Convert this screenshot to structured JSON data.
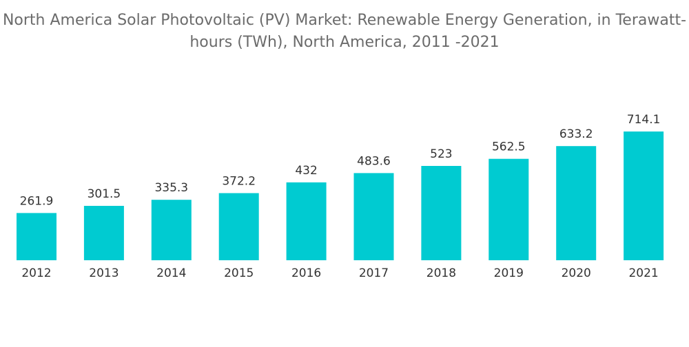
{
  "chart_data": {
    "type": "bar",
    "title": "North America Solar Photovoltaic (PV) Market: Renewable Energy Generation, in Terawatt-hours (TWh), North America, 2011 -2021",
    "xlabel": "",
    "ylabel": "",
    "categories": [
      "2012",
      "2013",
      "2014",
      "2015",
      "2016",
      "2017",
      "2018",
      "2019",
      "2020",
      "2021"
    ],
    "values": [
      261.9,
      301.5,
      335.3,
      372.2,
      432,
      483.6,
      523,
      562.5,
      633.2,
      714.1
    ],
    "value_labels": [
      "261.9",
      "301.5",
      "335.3",
      "372.2",
      "432",
      "483.6",
      "523",
      "562.5",
      "633.2",
      "714.1"
    ],
    "ylim": [
      0,
      714.1
    ],
    "grid": false,
    "legend": "none",
    "colors": {
      "bar": "#00cbd1"
    }
  }
}
